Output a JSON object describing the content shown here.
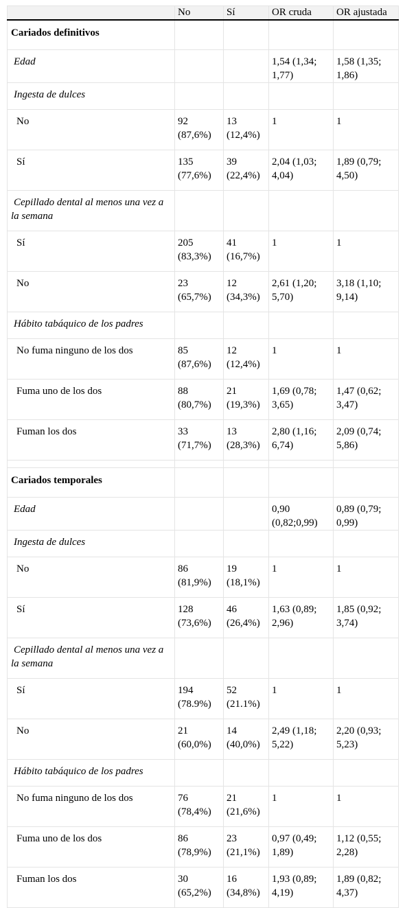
{
  "header": [
    "",
    "No",
    "Sí",
    "OR cruda",
    "OR ajustada"
  ],
  "rows": [
    {
      "type": "section",
      "cells": [
        "Cariados definitivos",
        "",
        "",
        "",
        ""
      ]
    },
    {
      "type": "var",
      "cells": [
        "Edad",
        "",
        "",
        "1,54 (1,34; 1,77)",
        "1,58 (1,35; 1,86)"
      ]
    },
    {
      "type": "var",
      "cells": [
        "Ingesta de dulces",
        "",
        "",
        "",
        ""
      ]
    },
    {
      "type": "cat",
      "cells": [
        "No",
        "92 (87,6%)",
        "13 (12,4%)",
        "1",
        "1"
      ]
    },
    {
      "type": "cat",
      "cells": [
        "Sí",
        "135 (77,6%)",
        "39 (22,4%)",
        "2,04 (1,03; 4,04)",
        "1,89 (0,79; 4,50)"
      ]
    },
    {
      "type": "var2",
      "cells": [
        "Cepillado dental al menos una vez a la semana",
        "",
        "",
        "",
        ""
      ]
    },
    {
      "type": "cat",
      "cells": [
        "Sí",
        "205 (83,3%)",
        "41 (16,7%)",
        "1",
        "1"
      ]
    },
    {
      "type": "cat",
      "cells": [
        "No",
        "23 (65,7%)",
        "12 (34,3%)",
        "2,61 (1,20; 5,70)",
        "3,18 (1,10; 9,14)"
      ]
    },
    {
      "type": "var",
      "cells": [
        "Hábito tabáquico de los padres",
        "",
        "",
        "",
        ""
      ]
    },
    {
      "type": "cat",
      "cells": [
        "No fuma ninguno de los dos",
        "85 (87,6%)",
        "12 (12,4%)",
        "1",
        "1"
      ]
    },
    {
      "type": "cat",
      "cells": [
        "Fuma uno de los dos",
        "88 (80,7%)",
        "21 (19,3%)",
        "1,69 (0,78; 3,65)",
        "1,47 (0,62; 3,47)"
      ]
    },
    {
      "type": "cat",
      "cells": [
        "Fuman los dos",
        "33 (71,7%)",
        "13 (28,3%)",
        "2,80 (1,16; 6,74)",
        "2,09 (0,74; 5,86)"
      ]
    },
    {
      "type": "spacer",
      "cells": [
        "",
        "",
        "",
        "",
        ""
      ]
    },
    {
      "type": "section",
      "cells": [
        "Cariados temporales",
        "",
        "",
        "",
        ""
      ]
    },
    {
      "type": "var",
      "cells": [
        "Edad",
        "",
        "",
        "0,90 (0,82;0,99)",
        "0,89 (0,79; 0,99)"
      ]
    },
    {
      "type": "var",
      "cells": [
        "Ingesta de dulces",
        "",
        "",
        "",
        ""
      ]
    },
    {
      "type": "cat",
      "cells": [
        "No",
        "86 (81,9%)",
        "19 (18,1%)",
        "1",
        "1"
      ]
    },
    {
      "type": "cat",
      "cells": [
        "Sí",
        "128 (73,6%)",
        "46 (26,4%)",
        "1,63 (0,89; 2,96)",
        "1,85 (0,92; 3,74)"
      ]
    },
    {
      "type": "var2",
      "cells": [
        "Cepillado dental al menos una vez a la semana",
        "",
        "",
        "",
        ""
      ]
    },
    {
      "type": "cat",
      "cells": [
        "Sí",
        "194 (78.9%)",
        "52 (21.1%)",
        "1",
        "1"
      ]
    },
    {
      "type": "cat",
      "cells": [
        "No",
        "21 (60,0%)",
        "14 (40,0%)",
        "2,49 (1,18; 5,22)",
        "2,20 (0,93; 5,23)"
      ]
    },
    {
      "type": "var",
      "cells": [
        "Hábito tabáquico de los padres",
        "",
        "",
        "",
        ""
      ]
    },
    {
      "type": "cat",
      "cells": [
        "No fuma ninguno de los dos",
        "76 (78,4%)",
        "21 (21,6%)",
        "1",
        "1"
      ]
    },
    {
      "type": "cat",
      "cells": [
        "Fuma uno de los dos",
        "86 (78,9%)",
        "23 (21,1%)",
        "0,97 (0,49; 1,89)",
        "1,12 (0,55; 2,28)"
      ]
    },
    {
      "type": "cat",
      "cells": [
        "Fuman los dos",
        "30 (65,2%)",
        "16 (34,8%)",
        "1,93 (0,89; 4,19)",
        "1,89 (0,82; 4,37)"
      ]
    }
  ]
}
